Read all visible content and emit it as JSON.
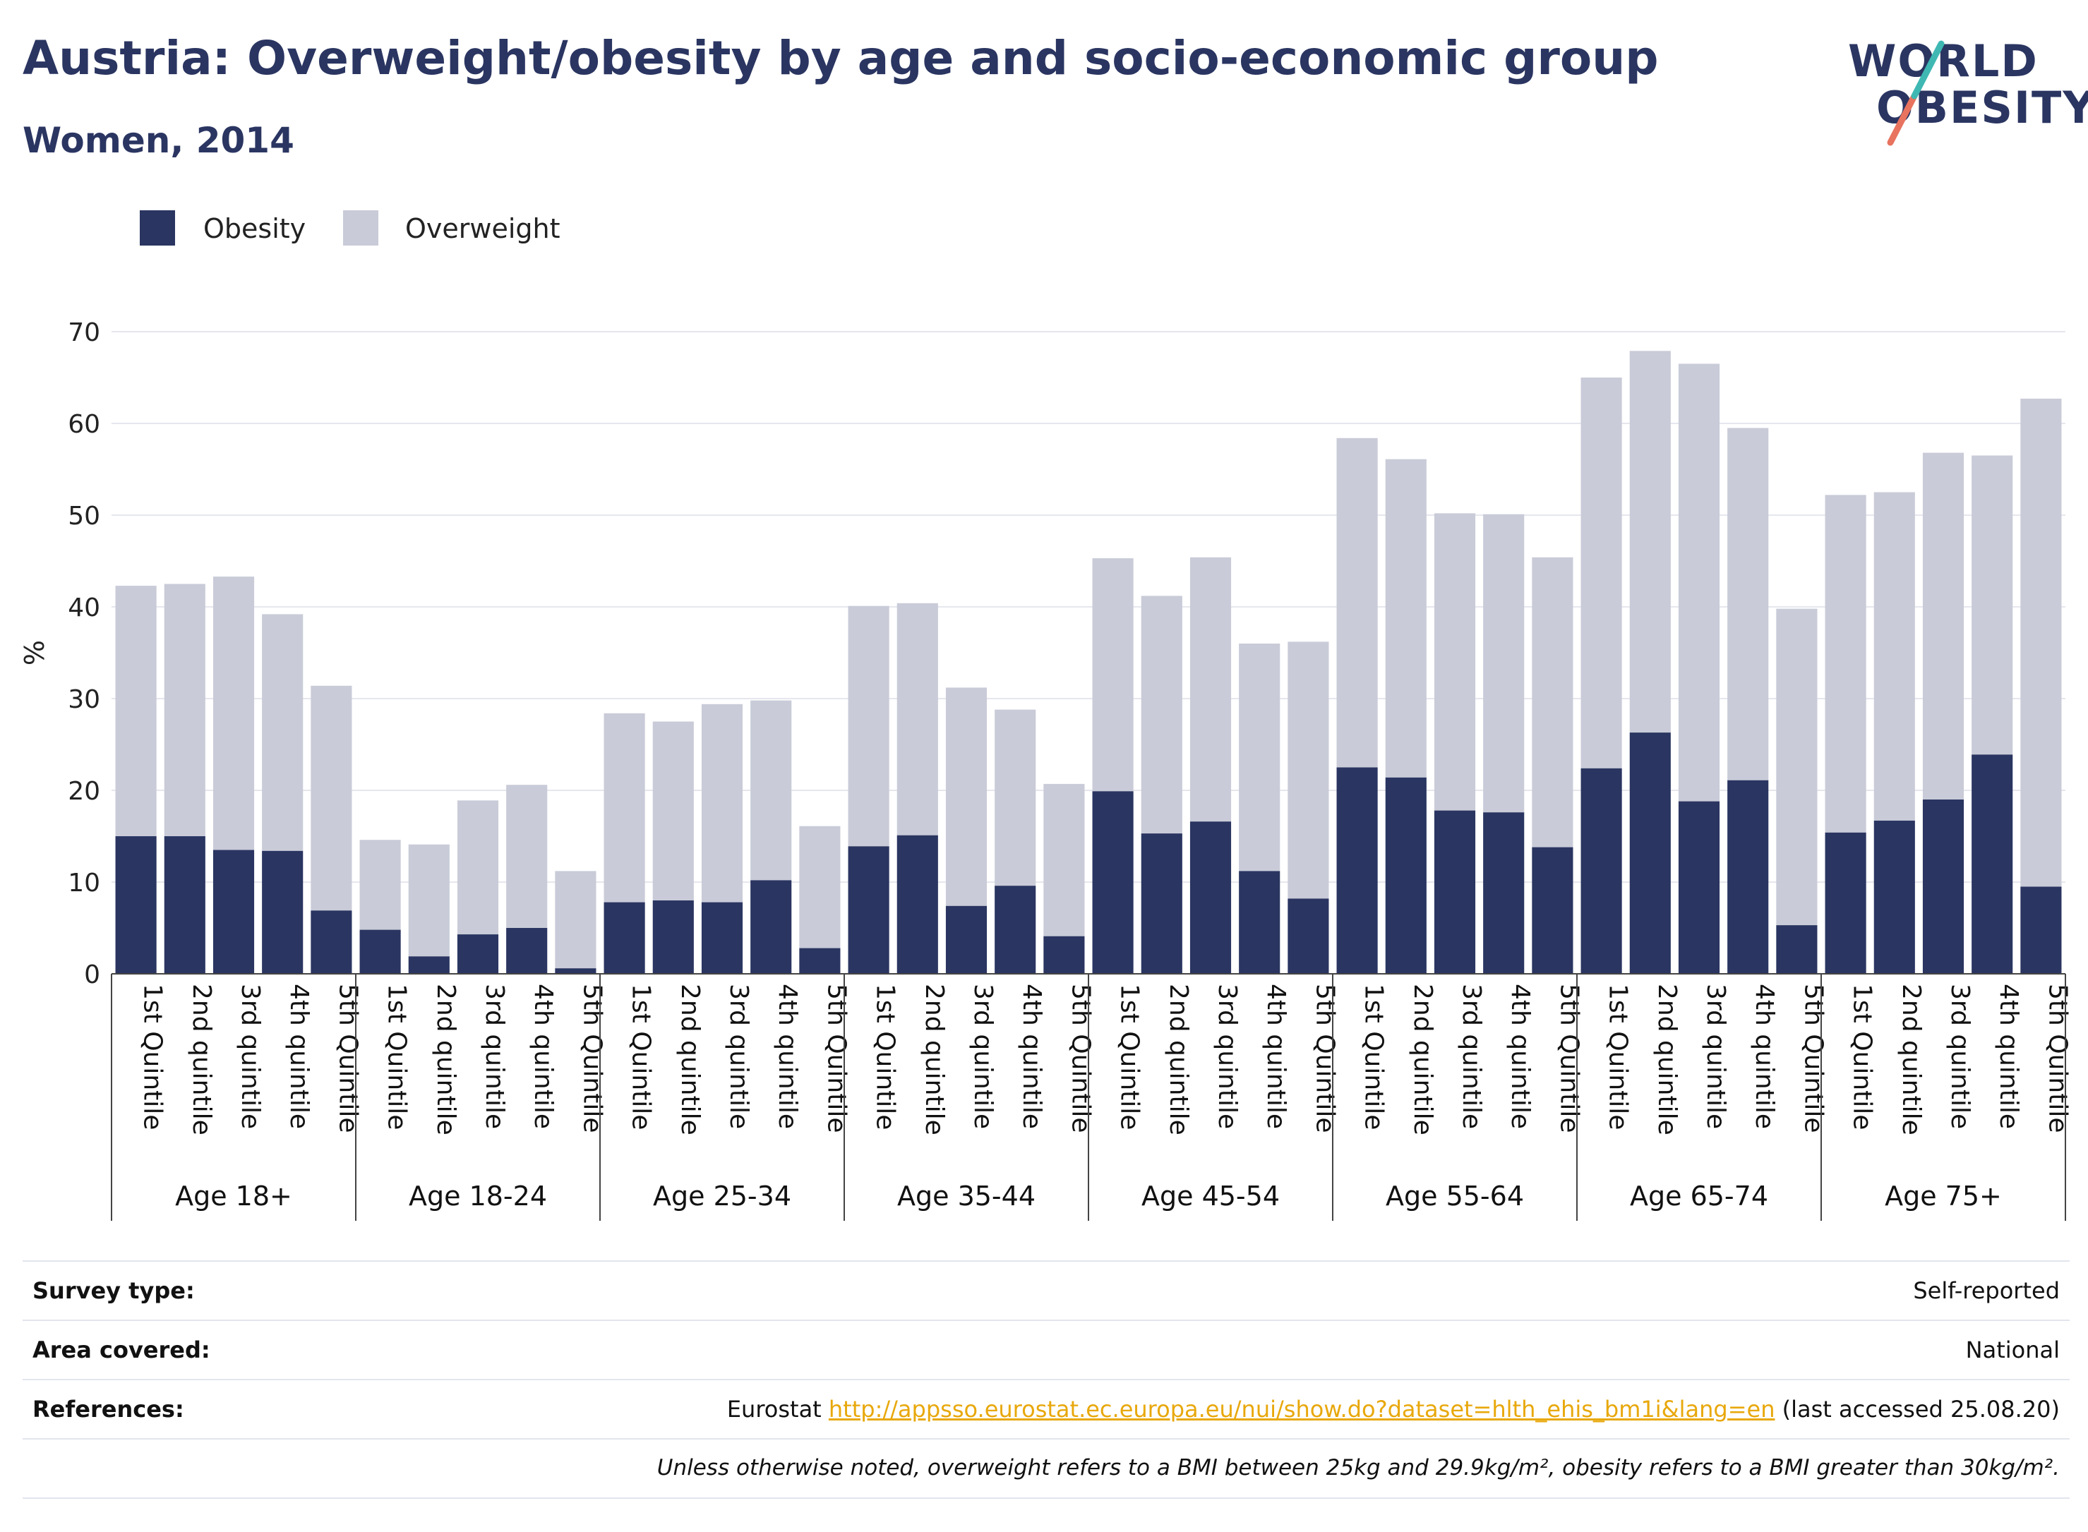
{
  "header": {
    "title": "Austria: Overweight/obesity by age and socio-economic group",
    "subtitle": "Women, 2014"
  },
  "logo": {
    "line1": "WORLD",
    "line2": "OBESITY"
  },
  "colors": {
    "obesity": "#2a3561",
    "overweight": "#c9cbd8",
    "link": "#e8a80c"
  },
  "chart_data": {
    "type": "bar",
    "stacked": true,
    "ylabel": "%",
    "xlabel": "",
    "ylim": [
      0,
      70
    ],
    "yticks": [
      0,
      10,
      20,
      30,
      40,
      50,
      60,
      70
    ],
    "grid": true,
    "legend": {
      "placement": "top-left",
      "entries": [
        "Obesity",
        "Overweight"
      ]
    },
    "groups": [
      "Age 18+",
      "Age 18-24",
      "Age 25-34",
      "Age 35-44",
      "Age 45-54",
      "Age 55-64",
      "Age 65-74",
      "Age 75+"
    ],
    "categories": [
      [
        "1st Quintile",
        "2nd quintile",
        "3rd quintile",
        "4th quintile",
        "5th Quintile"
      ],
      [
        "1st Quintile",
        "2nd quintile",
        "3rd quintile",
        "4th quintile",
        "5th Quintile"
      ],
      [
        "1st Quintile",
        "2nd quintile",
        "3rd quintile",
        "4th quintile",
        "5th Quintile"
      ],
      [
        "1st Quintile",
        "2nd quintile",
        "3rd quintile",
        "4th quintile",
        "5th Quintile"
      ],
      [
        "1st Quintile",
        "2nd quintile",
        "3rd quintile",
        "4th quintile",
        "5th Quintile"
      ],
      [
        "1st Quintile",
        "2nd quintile",
        "3rd quintile",
        "4th quintile",
        "5th Quintile"
      ],
      [
        "1st Quintile",
        "2nd quintile",
        "3rd quintile",
        "4th quintile",
        "5th Quintile"
      ],
      [
        "1st Quintile",
        "2nd quintile",
        "3rd quintile",
        "4th quintile",
        "5th Quintile"
      ]
    ],
    "series": [
      {
        "name": "Obesity",
        "values": [
          [
            15.0,
            15.0,
            13.5,
            13.4,
            6.9
          ],
          [
            4.8,
            1.9,
            4.3,
            5.0,
            0.6
          ],
          [
            7.8,
            8.0,
            7.8,
            10.2,
            2.8
          ],
          [
            13.9,
            15.1,
            7.4,
            9.6,
            4.1
          ],
          [
            19.9,
            15.3,
            16.6,
            11.2,
            8.2
          ],
          [
            22.5,
            21.4,
            17.8,
            17.6,
            13.8
          ],
          [
            22.4,
            26.3,
            18.8,
            21.1,
            5.3
          ],
          [
            15.4,
            16.7,
            19.0,
            23.9,
            9.5
          ]
        ]
      },
      {
        "name": "Overweight",
        "values": [
          [
            27.3,
            27.5,
            29.8,
            25.8,
            24.5
          ],
          [
            9.8,
            12.2,
            14.6,
            15.6,
            10.6
          ],
          [
            20.6,
            19.5,
            21.6,
            19.6,
            13.3
          ],
          [
            26.2,
            25.3,
            23.8,
            19.2,
            16.6
          ],
          [
            25.4,
            25.9,
            28.8,
            24.8,
            28.0
          ],
          [
            35.9,
            34.7,
            32.4,
            32.5,
            31.6
          ],
          [
            42.6,
            41.6,
            47.7,
            38.4,
            34.5
          ],
          [
            36.8,
            35.8,
            37.8,
            32.6,
            53.2
          ]
        ]
      }
    ]
  },
  "info": {
    "survey_type_label": "Survey type:",
    "survey_type_value": "Self-reported",
    "area_label": "Area covered:",
    "area_value": "National",
    "references_label": "References:",
    "references_prefix": "Eurostat ",
    "references_link": "http://appsso.eurostat.ec.europa.eu/nui/show.do?dataset=hlth_ehis_bm1i&lang=en",
    "references_suffix": " (last accessed 25.08.20)",
    "note": "Unless otherwise noted, overweight refers to a BMI between 25kg and 29.9kg/m², obesity refers to a BMI greater than 30kg/m²."
  }
}
